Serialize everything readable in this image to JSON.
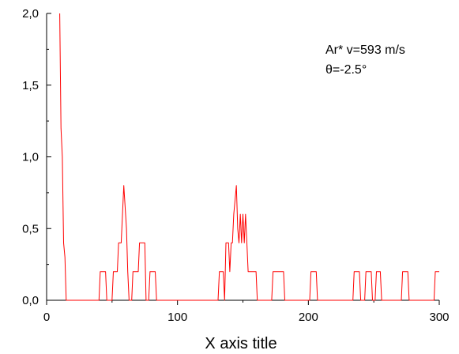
{
  "chart_data": {
    "type": "line",
    "title": "",
    "xlabel": "X axis title",
    "ylabel": "",
    "xlim": [
      0,
      300
    ],
    "ylim": [
      0,
      2.0
    ],
    "grid": false,
    "x_ticks": [
      0,
      100,
      200,
      300
    ],
    "x_tick_labels": [
      "0",
      "100",
      "200",
      "300"
    ],
    "y_ticks": [
      0,
      0.5,
      1.0,
      1.5,
      2.0
    ],
    "y_tick_labels": [
      "0,0",
      "0,5",
      "1,0",
      "1,5",
      "2,0"
    ],
    "annotations": [
      "Ar* v=593 m/s",
      "θ=-2.5°"
    ],
    "series": [
      {
        "color": "#ff0000",
        "points": [
          [
            10,
            2.0
          ],
          [
            11,
            1.2
          ],
          [
            12,
            1.0
          ],
          [
            13,
            0.4
          ],
          [
            14,
            0.3
          ],
          [
            15,
            0.0
          ],
          [
            40,
            0.0
          ],
          [
            41,
            0.2
          ],
          [
            45,
            0.2
          ],
          [
            46,
            0.0
          ],
          [
            50,
            0.0
          ],
          [
            51,
            0.2
          ],
          [
            54,
            0.2
          ],
          [
            55,
            0.4
          ],
          [
            57,
            0.4
          ],
          [
            59,
            0.8
          ],
          [
            61,
            0.5
          ],
          [
            62,
            0.2
          ],
          [
            63,
            0.0
          ],
          [
            65,
            0.0
          ],
          [
            66,
            0.2
          ],
          [
            70,
            0.2
          ],
          [
            71,
            0.4
          ],
          [
            75,
            0.4
          ],
          [
            76,
            0.0
          ],
          [
            78,
            0.0
          ],
          [
            79,
            0.2
          ],
          [
            83,
            0.2
          ],
          [
            84,
            0.0
          ],
          [
            131,
            0.0
          ],
          [
            132,
            0.2
          ],
          [
            135,
            0.2
          ],
          [
            136,
            0.0
          ],
          [
            137,
            0.4
          ],
          [
            139,
            0.4
          ],
          [
            140,
            0.2
          ],
          [
            141,
            0.4
          ],
          [
            142,
            0.4
          ],
          [
            143,
            0.6
          ],
          [
            145,
            0.8
          ],
          [
            146,
            0.5
          ],
          [
            147,
            0.4
          ],
          [
            148,
            0.6
          ],
          [
            149,
            0.4
          ],
          [
            150,
            0.6
          ],
          [
            151,
            0.4
          ],
          [
            152,
            0.6
          ],
          [
            153,
            0.4
          ],
          [
            154,
            0.2
          ],
          [
            160,
            0.2
          ],
          [
            161,
            0.0
          ],
          [
            172,
            0.0
          ],
          [
            173,
            0.2
          ],
          [
            181,
            0.2
          ],
          [
            182,
            0.0
          ],
          [
            201,
            0.0
          ],
          [
            202,
            0.2
          ],
          [
            206,
            0.2
          ],
          [
            207,
            0.0
          ],
          [
            234,
            0.0
          ],
          [
            235,
            0.2
          ],
          [
            239,
            0.2
          ],
          [
            240,
            0.0
          ],
          [
            243,
            0.0
          ],
          [
            244,
            0.2
          ],
          [
            248,
            0.2
          ],
          [
            249,
            0.0
          ],
          [
            251,
            0.0
          ],
          [
            252,
            0.2
          ],
          [
            255,
            0.2
          ],
          [
            256,
            0.0
          ],
          [
            271,
            0.0
          ],
          [
            272,
            0.2
          ],
          [
            276,
            0.2
          ],
          [
            277,
            0.0
          ],
          [
            296,
            0.0
          ],
          [
            297,
            0.2
          ],
          [
            301,
            0.2
          ]
        ]
      }
    ]
  }
}
